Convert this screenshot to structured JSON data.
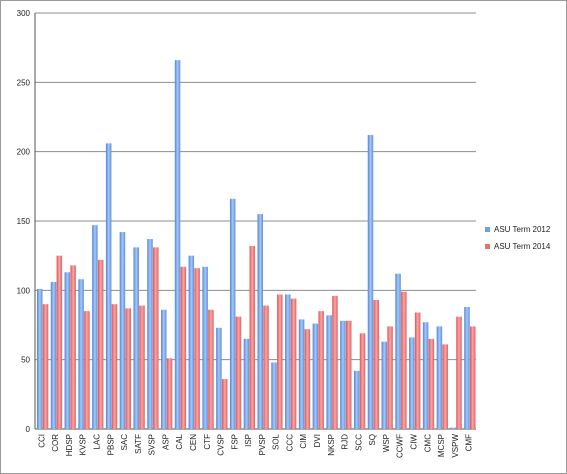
{
  "chart_data": {
    "type": "bar",
    "title": "",
    "xlabel": "",
    "ylabel": "",
    "ylim": [
      0,
      300
    ],
    "yticks": [
      0,
      50,
      100,
      150,
      200,
      250,
      300
    ],
    "grid": true,
    "legend_position": "right",
    "categories": [
      "CCI",
      "COR",
      "HDSP",
      "KVSP",
      "LAC",
      "PBSP",
      "SAC",
      "SATF",
      "SVSP",
      "ASP",
      "CAL",
      "CEN",
      "CTF",
      "CVSP",
      "FSP",
      "ISP",
      "PVSP",
      "SOL",
      "CCC",
      "CIM",
      "DVI",
      "NKSP",
      "RJD",
      "SCC",
      "SQ",
      "WSP",
      "CCWF",
      "CIW",
      "CMC",
      "MCSP",
      "VSPW",
      "CMF"
    ],
    "series": [
      {
        "name": "ASU Term 2012",
        "color": "#6f9fe6",
        "values": [
          101,
          106,
          113,
          108,
          147,
          206,
          142,
          131,
          137,
          86,
          266,
          125,
          117,
          73,
          166,
          65,
          155,
          48,
          97,
          79,
          76,
          82,
          78,
          42,
          212,
          63,
          112,
          66,
          77,
          74,
          1,
          88
        ]
      },
      {
        "name": "ASU Term 2014",
        "color": "#ec6e6e",
        "values": [
          90,
          125,
          118,
          85,
          122,
          90,
          87,
          89,
          131,
          51,
          117,
          116,
          86,
          36,
          81,
          132,
          89,
          97,
          94,
          72,
          85,
          96,
          78,
          69,
          93,
          74,
          99,
          84,
          65,
          61,
          81,
          74
        ]
      }
    ]
  }
}
